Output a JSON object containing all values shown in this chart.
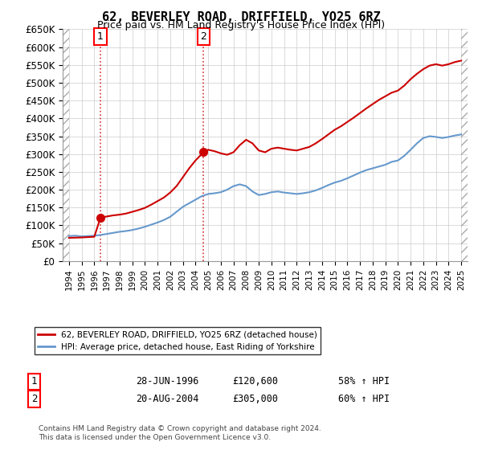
{
  "title": "62, BEVERLEY ROAD, DRIFFIELD, YO25 6RZ",
  "subtitle": "Price paid vs. HM Land Registry's House Price Index (HPI)",
  "ylabel_ticks": [
    "£0",
    "£50K",
    "£100K",
    "£150K",
    "£200K",
    "£250K",
    "£300K",
    "£350K",
    "£400K",
    "£450K",
    "£500K",
    "£550K",
    "£600K",
    "£650K"
  ],
  "ylim": [
    0,
    650000
  ],
  "xlim_start": 1993.5,
  "xlim_end": 2025.5,
  "xticks": [
    1994,
    1995,
    1996,
    1997,
    1998,
    1999,
    2000,
    2001,
    2002,
    2003,
    2004,
    2005,
    2006,
    2007,
    2008,
    2009,
    2010,
    2011,
    2012,
    2013,
    2014,
    2015,
    2016,
    2017,
    2018,
    2019,
    2020,
    2021,
    2022,
    2023,
    2024,
    2025
  ],
  "hpi_color": "#6699cc",
  "price_color": "#cc0000",
  "marker_color": "#cc0000",
  "vline_color": "#cc0000",
  "sale1_x": 1996.48,
  "sale1_y": 120600,
  "sale1_label": "1",
  "sale1_date": "28-JUN-1996",
  "sale1_price": "£120,600",
  "sale1_hpi": "58% ↑ HPI",
  "sale2_x": 2004.63,
  "sale2_y": 305000,
  "sale2_label": "2",
  "sale2_date": "20-AUG-2004",
  "sale2_price": "£305,000",
  "sale2_hpi": "60% ↑ HPI",
  "legend_label_price": "62, BEVERLEY ROAD, DRIFFIELD, YO25 6RZ (detached house)",
  "legend_label_hpi": "HPI: Average price, detached house, East Riding of Yorkshire",
  "footnote": "Contains HM Land Registry data © Crown copyright and database right 2024.\nThis data is licensed under the Open Government Licence v3.0.",
  "hpi_data": [
    [
      1994.0,
      70000
    ],
    [
      1994.5,
      71000
    ],
    [
      1995.0,
      69000
    ],
    [
      1995.5,
      70000
    ],
    [
      1996.0,
      71000
    ],
    [
      1996.5,
      73000
    ],
    [
      1997.0,
      76000
    ],
    [
      1997.5,
      79000
    ],
    [
      1998.0,
      82000
    ],
    [
      1998.5,
      84000
    ],
    [
      1999.0,
      87000
    ],
    [
      1999.5,
      91000
    ],
    [
      2000.0,
      96000
    ],
    [
      2000.5,
      102000
    ],
    [
      2001.0,
      108000
    ],
    [
      2001.5,
      115000
    ],
    [
      2002.0,
      124000
    ],
    [
      2002.5,
      138000
    ],
    [
      2003.0,
      152000
    ],
    [
      2003.5,
      162000
    ],
    [
      2004.0,
      172000
    ],
    [
      2004.5,
      182000
    ],
    [
      2005.0,
      188000
    ],
    [
      2005.5,
      190000
    ],
    [
      2006.0,
      193000
    ],
    [
      2006.5,
      200000
    ],
    [
      2007.0,
      210000
    ],
    [
      2007.5,
      215000
    ],
    [
      2008.0,
      210000
    ],
    [
      2008.5,
      195000
    ],
    [
      2009.0,
      185000
    ],
    [
      2009.5,
      188000
    ],
    [
      2010.0,
      193000
    ],
    [
      2010.5,
      195000
    ],
    [
      2011.0,
      192000
    ],
    [
      2011.5,
      190000
    ],
    [
      2012.0,
      188000
    ],
    [
      2012.5,
      190000
    ],
    [
      2013.0,
      193000
    ],
    [
      2013.5,
      198000
    ],
    [
      2014.0,
      205000
    ],
    [
      2014.5,
      213000
    ],
    [
      2015.0,
      220000
    ],
    [
      2015.5,
      225000
    ],
    [
      2016.0,
      232000
    ],
    [
      2016.5,
      240000
    ],
    [
      2017.0,
      248000
    ],
    [
      2017.5,
      255000
    ],
    [
      2018.0,
      260000
    ],
    [
      2018.5,
      265000
    ],
    [
      2019.0,
      270000
    ],
    [
      2019.5,
      278000
    ],
    [
      2020.0,
      282000
    ],
    [
      2020.5,
      295000
    ],
    [
      2021.0,
      312000
    ],
    [
      2021.5,
      330000
    ],
    [
      2022.0,
      345000
    ],
    [
      2022.5,
      350000
    ],
    [
      2023.0,
      348000
    ],
    [
      2023.5,
      345000
    ],
    [
      2024.0,
      348000
    ],
    [
      2024.5,
      352000
    ],
    [
      2025.0,
      355000
    ]
  ],
  "price_data": [
    [
      1994.0,
      65000
    ],
    [
      1995.0,
      66000
    ],
    [
      1996.0,
      68000
    ],
    [
      1996.48,
      120600
    ],
    [
      1997.0,
      125000
    ],
    [
      1997.5,
      128000
    ],
    [
      1998.0,
      130000
    ],
    [
      1998.5,
      133000
    ],
    [
      1999.0,
      138000
    ],
    [
      1999.5,
      143000
    ],
    [
      2000.0,
      149000
    ],
    [
      2000.5,
      158000
    ],
    [
      2001.0,
      168000
    ],
    [
      2001.5,
      178000
    ],
    [
      2002.0,
      192000
    ],
    [
      2002.5,
      210000
    ],
    [
      2003.0,
      235000
    ],
    [
      2003.5,
      260000
    ],
    [
      2004.0,
      282000
    ],
    [
      2004.63,
      305000
    ],
    [
      2005.0,
      312000
    ],
    [
      2005.5,
      308000
    ],
    [
      2006.0,
      302000
    ],
    [
      2006.5,
      298000
    ],
    [
      2007.0,
      305000
    ],
    [
      2007.5,
      325000
    ],
    [
      2008.0,
      340000
    ],
    [
      2008.5,
      330000
    ],
    [
      2009.0,
      310000
    ],
    [
      2009.5,
      305000
    ],
    [
      2010.0,
      315000
    ],
    [
      2010.5,
      318000
    ],
    [
      2011.0,
      315000
    ],
    [
      2011.5,
      312000
    ],
    [
      2012.0,
      310000
    ],
    [
      2012.5,
      315000
    ],
    [
      2013.0,
      320000
    ],
    [
      2013.5,
      330000
    ],
    [
      2014.0,
      342000
    ],
    [
      2014.5,
      355000
    ],
    [
      2015.0,
      368000
    ],
    [
      2015.5,
      378000
    ],
    [
      2016.0,
      390000
    ],
    [
      2016.5,
      402000
    ],
    [
      2017.0,
      415000
    ],
    [
      2017.5,
      428000
    ],
    [
      2018.0,
      440000
    ],
    [
      2018.5,
      452000
    ],
    [
      2019.0,
      462000
    ],
    [
      2019.5,
      472000
    ],
    [
      2020.0,
      478000
    ],
    [
      2020.5,
      492000
    ],
    [
      2021.0,
      510000
    ],
    [
      2021.5,
      525000
    ],
    [
      2022.0,
      538000
    ],
    [
      2022.5,
      548000
    ],
    [
      2023.0,
      552000
    ],
    [
      2023.5,
      548000
    ],
    [
      2024.0,
      552000
    ],
    [
      2024.5,
      558000
    ],
    [
      2025.0,
      562000
    ]
  ]
}
